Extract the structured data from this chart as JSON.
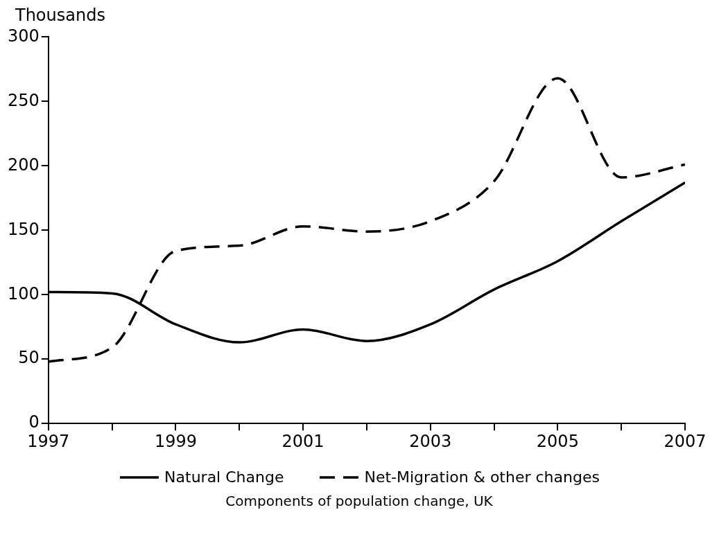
{
  "chart_data": {
    "type": "line",
    "ylabel": "Thousands",
    "annotations": [
      "Components of population change, UK"
    ],
    "x": [
      1997,
      1998,
      1999,
      2000,
      2001,
      2002,
      2003,
      2004,
      2005,
      2006,
      2007
    ],
    "series": [
      {
        "name": "Natural Change",
        "color": "#000000",
        "line_style": "solid",
        "values": [
          102,
          101,
          77,
          63,
          73,
          64,
          77,
          104,
          126,
          157,
          187
        ]
      },
      {
        "name": "Net-Migration & other changes",
        "color": "#000000",
        "line_style": "dashed",
        "values": [
          48,
          59,
          134,
          138,
          153,
          149,
          157,
          188,
          268,
          191,
          201
        ]
      }
    ],
    "xlim": [
      1997,
      2007
    ],
    "xticks": [
      1997,
      {
        "value": 1998,
        "label": null
      },
      1999,
      {
        "value": 2000,
        "label": null
      },
      2001,
      {
        "value": 2002,
        "label": null
      },
      2003,
      {
        "value": 2004,
        "label": null
      },
      2005,
      {
        "value": 2006,
        "label": null
      },
      2007
    ],
    "ylim": [
      0,
      300
    ],
    "yticks": [
      0,
      50,
      100,
      150,
      200,
      250,
      300
    ],
    "grid": false,
    "legend": "bottom",
    "marker": "none"
  }
}
